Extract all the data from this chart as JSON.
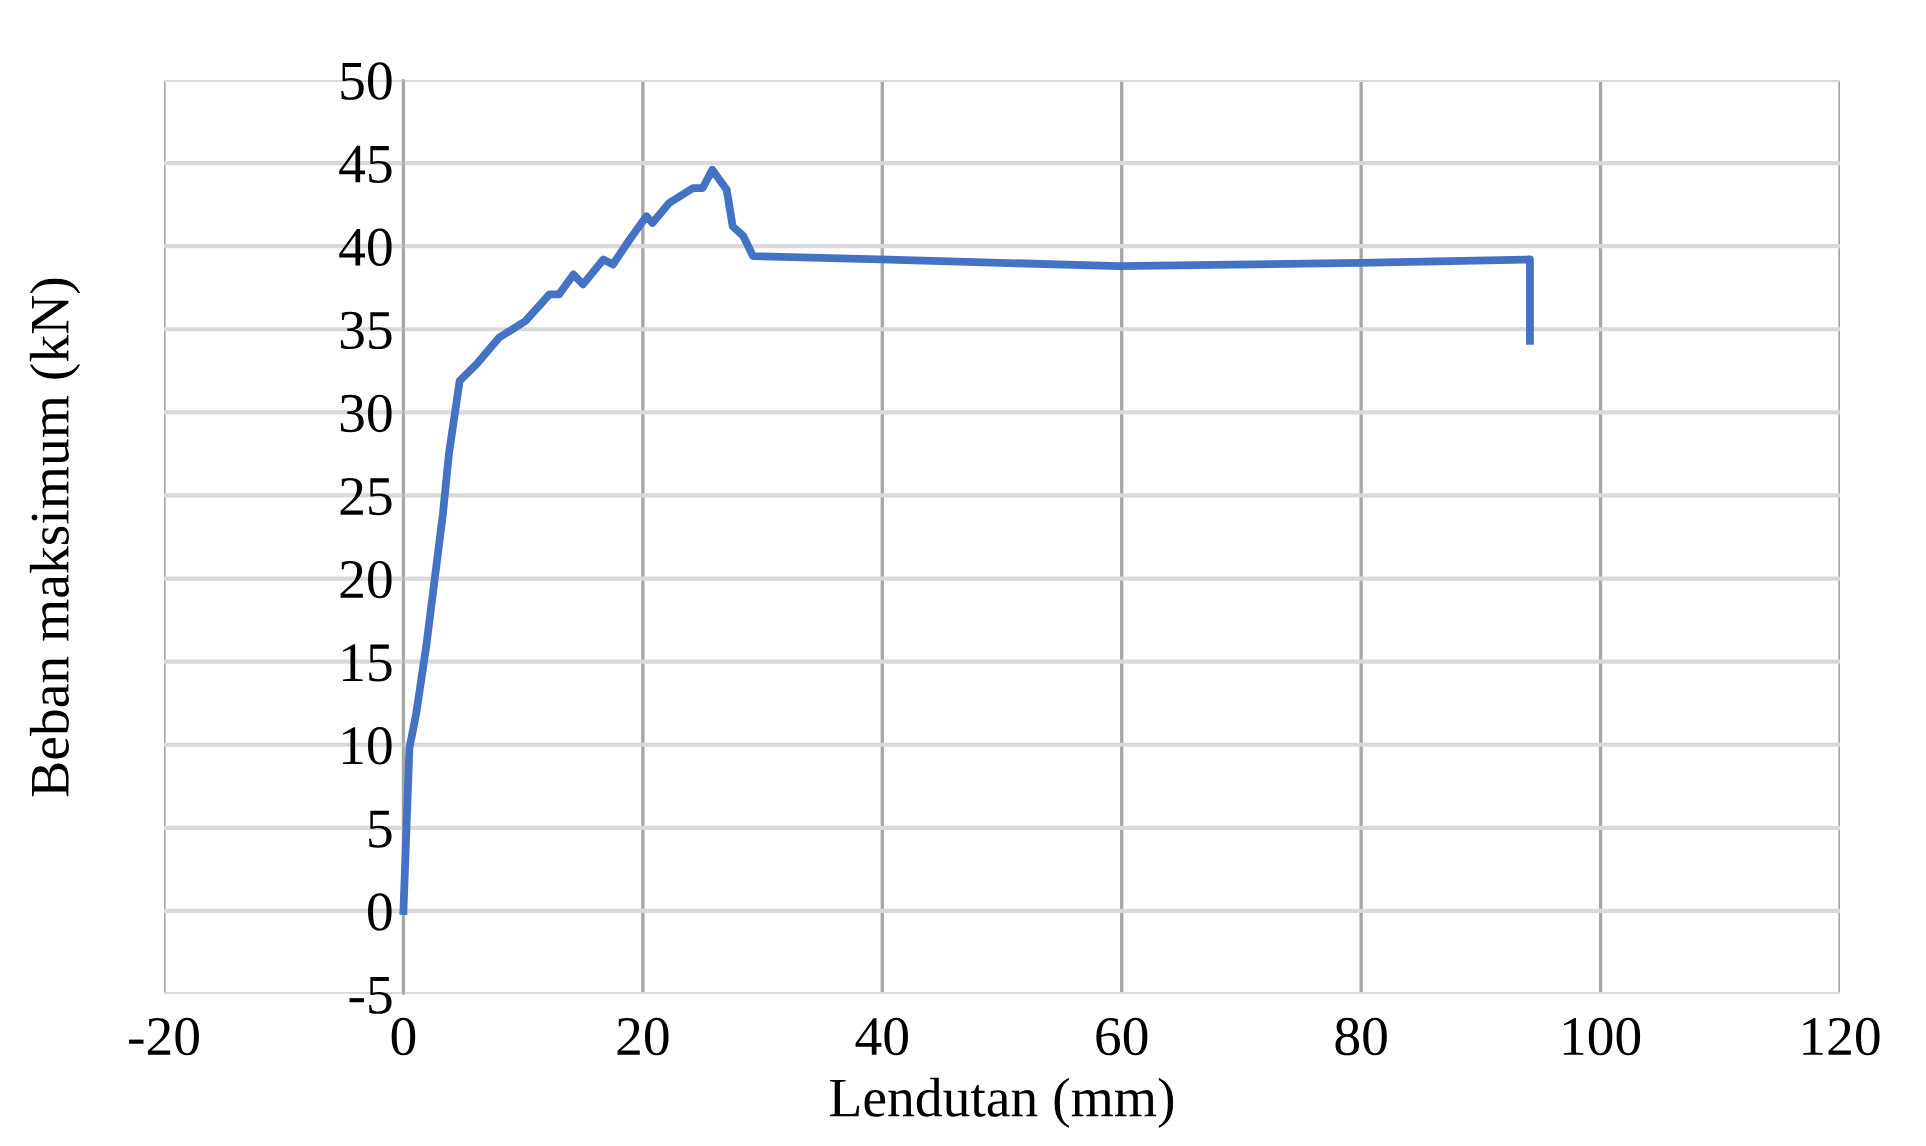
{
  "chart_data": {
    "type": "line",
    "xlabel": "Lendutan (mm)",
    "ylabel": "Beban maksimum (kN)",
    "xlim": [
      -20,
      120
    ],
    "ylim": [
      -5,
      50
    ],
    "xticks": [
      -20,
      0,
      20,
      40,
      60,
      80,
      100,
      120
    ],
    "yticks": [
      -5,
      0,
      5,
      10,
      15,
      20,
      25,
      30,
      35,
      40,
      45,
      50
    ],
    "grid": true,
    "legend": false,
    "marker": "none",
    "line_style": "solid",
    "series": [
      {
        "color": "#4472c4",
        "x": [
          0,
          0.5,
          1.05,
          1.9,
          3.3,
          3.8,
          4.7,
          6.1,
          8.0,
          10.2,
          12.2,
          13.0,
          14.2,
          15.0,
          16.7,
          17.5,
          18.9,
          20.3,
          20.8,
          22.2,
          24.2,
          25.0,
          25.8,
          27.0,
          27.5,
          28.4,
          29.2,
          39.8,
          59.8,
          79.9,
          94.1,
          94.1
        ],
        "values": [
          0,
          9.8,
          11.8,
          15.9,
          23.9,
          27.5,
          31.9,
          32.9,
          34.5,
          35.5,
          37.1,
          37.1,
          38.3,
          37.7,
          39.2,
          38.9,
          40.4,
          41.8,
          41.4,
          42.6,
          43.5,
          43.5,
          44.6,
          43.4,
          41.2,
          40.6,
          39.4,
          39.2,
          38.8,
          39.0,
          39.2,
          34.3
        ]
      }
    ]
  }
}
